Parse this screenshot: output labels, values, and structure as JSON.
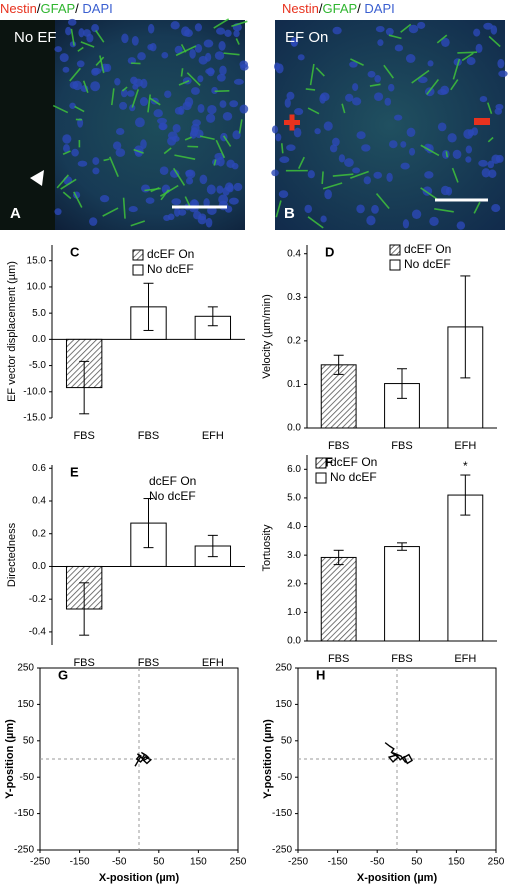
{
  "images": [
    {
      "stain": [
        "Nestin",
        "/",
        "GFAP",
        "/ ",
        "DAPI"
      ],
      "caption": "No EF",
      "label": "A"
    },
    {
      "stain": [
        "Nestin",
        "/",
        "GFAP",
        "/ ",
        "DAPI"
      ],
      "caption": "EF On",
      "label": "B"
    }
  ],
  "chart_data": [
    {
      "type": "bar",
      "panel": "C",
      "ylabel": "EF vector displacement (µm)",
      "categories": [
        "FBS",
        "FBS",
        "EFH"
      ],
      "series": [
        {
          "name": "dcEF On",
          "color": "#555555",
          "pattern": "hatch",
          "values": [
            -9.2,
            null,
            null
          ],
          "errors": [
            5.0,
            null,
            null
          ]
        },
        {
          "name": "No dcEF",
          "color": "#ffffff",
          "values": [
            null,
            6.2,
            4.4
          ],
          "errors": [
            null,
            4.5,
            1.8
          ]
        }
      ],
      "ylim": [
        -15,
        18
      ],
      "yticks": [
        {
          "value": -15,
          "label": "-15.0"
        },
        {
          "value": -10,
          "label": "-10.0"
        },
        {
          "value": -5,
          "label": "-5.0"
        },
        {
          "value": 0,
          "label": "0.0"
        },
        {
          "value": 5,
          "label": "5.0"
        },
        {
          "value": 10,
          "label": "10.0"
        },
        {
          "value": 15,
          "label": "15.0"
        }
      ],
      "legend": true
    },
    {
      "type": "bar",
      "panel": "D",
      "ylabel": "Velocity (µm/min)",
      "categories": [
        "FBS",
        "FBS",
        "EFH"
      ],
      "series": [
        {
          "name": "dcEF On",
          "color": "#555555",
          "pattern": "hatch",
          "values": [
            0.145,
            null,
            null
          ],
          "errors": [
            0.022,
            null,
            null
          ]
        },
        {
          "name": "No dcEF",
          "color": "#ffffff",
          "values": [
            null,
            0.102,
            0.232
          ],
          "errors": [
            null,
            0.034,
            0.117
          ]
        }
      ],
      "ylim": [
        0,
        0.42
      ],
      "yticks": [
        {
          "value": 0,
          "label": "0.0"
        },
        0.1,
        0.2,
        0.3,
        0.4
      ],
      "legend": true
    },
    {
      "type": "bar",
      "panel": "E",
      "ylabel": "Directedness",
      "categories": [
        "FBS",
        "FBS",
        "EFH"
      ],
      "series": [
        {
          "name": "dcEF On",
          "color": "#555555",
          "pattern": "hatch",
          "values": [
            -0.26,
            null,
            null
          ],
          "errors": [
            0.16,
            null,
            null
          ]
        },
        {
          "name": "No dcEF",
          "color": "#ffffff",
          "values": [
            null,
            0.265,
            0.125
          ],
          "errors": [
            null,
            0.15,
            0.065
          ]
        }
      ],
      "ylim": [
        -0.48,
        0.62
      ],
      "yticks": [
        -0.4,
        -0.2,
        {
          "value": 0,
          "label": "0.0"
        },
        0.2,
        0.4,
        0.6
      ],
      "legend": true,
      "legend_swatches": false
    },
    {
      "type": "bar",
      "panel": "F",
      "ylabel": "Tortuosity",
      "categories": [
        "FBS",
        "FBS",
        "EFH"
      ],
      "series": [
        {
          "name": "dcEF On",
          "color": "#555555",
          "pattern": "hatch",
          "values": [
            2.92,
            null,
            null
          ],
          "errors": [
            0.25,
            null,
            null
          ]
        },
        {
          "name": "No dcEF",
          "color": "#ffffff",
          "values": [
            null,
            3.3,
            5.1
          ],
          "errors": [
            null,
            0.13,
            0.7
          ]
        }
      ],
      "ylim": [
        0,
        6.5
      ],
      "yticks": [
        {
          "value": 0,
          "label": "0.0"
        },
        {
          "value": 1,
          "label": "1.0"
        },
        {
          "value": 2,
          "label": "2.0"
        },
        {
          "value": 3,
          "label": "3.0"
        },
        {
          "value": 4,
          "label": "4.0"
        },
        {
          "value": 5,
          "label": "5.0"
        },
        {
          "value": 6,
          "label": "6.0"
        }
      ],
      "legend": true,
      "annotations": [
        {
          "text": "*",
          "category": "EFH"
        }
      ]
    },
    {
      "type": "line",
      "panel": "G",
      "xlabel": "X-position (µm)",
      "ylabel": "Y-position (µm)",
      "series": [
        {
          "color": "#000000",
          "x": [
            -10,
            -2,
            5,
            -4,
            8,
            14,
            6,
            18,
            24,
            12,
            20,
            30,
            16,
            4,
            -6,
            2
          ],
          "y": [
            -20,
            -5,
            8,
            14,
            2,
            12,
            18,
            10,
            4,
            -4,
            -12,
            -2,
            6,
            -8,
            0,
            10
          ]
        }
      ],
      "xlim": [
        -250,
        250
      ],
      "ylim": [
        -250,
        250
      ],
      "xticks": [
        -250,
        -150,
        -50,
        50,
        150,
        250
      ],
      "yticks": [
        -250,
        -150,
        -50,
        50,
        150,
        250
      ],
      "zero_lines": true
    },
    {
      "type": "line",
      "panel": "H",
      "xlabel": "X-position (µm)",
      "ylabel": "Y-position (µm)",
      "series": [
        {
          "color": "#000000",
          "x": [
            -30,
            -18,
            -8,
            -14,
            -4,
            -20,
            -10,
            2,
            -6,
            10,
            22,
            14,
            30,
            38,
            26,
            18,
            8,
            0
          ],
          "y": [
            45,
            35,
            28,
            18,
            10,
            5,
            -8,
            4,
            15,
            8,
            -10,
            2,
            12,
            -4,
            -12,
            6,
            -2,
            10
          ]
        }
      ],
      "xlim": [
        -250,
        250
      ],
      "ylim": [
        -250,
        250
      ],
      "xticks": [
        -250,
        -150,
        -50,
        50,
        150,
        250
      ],
      "yticks": [
        -250,
        -150,
        -50,
        50,
        150,
        250
      ],
      "zero_lines": true
    }
  ]
}
